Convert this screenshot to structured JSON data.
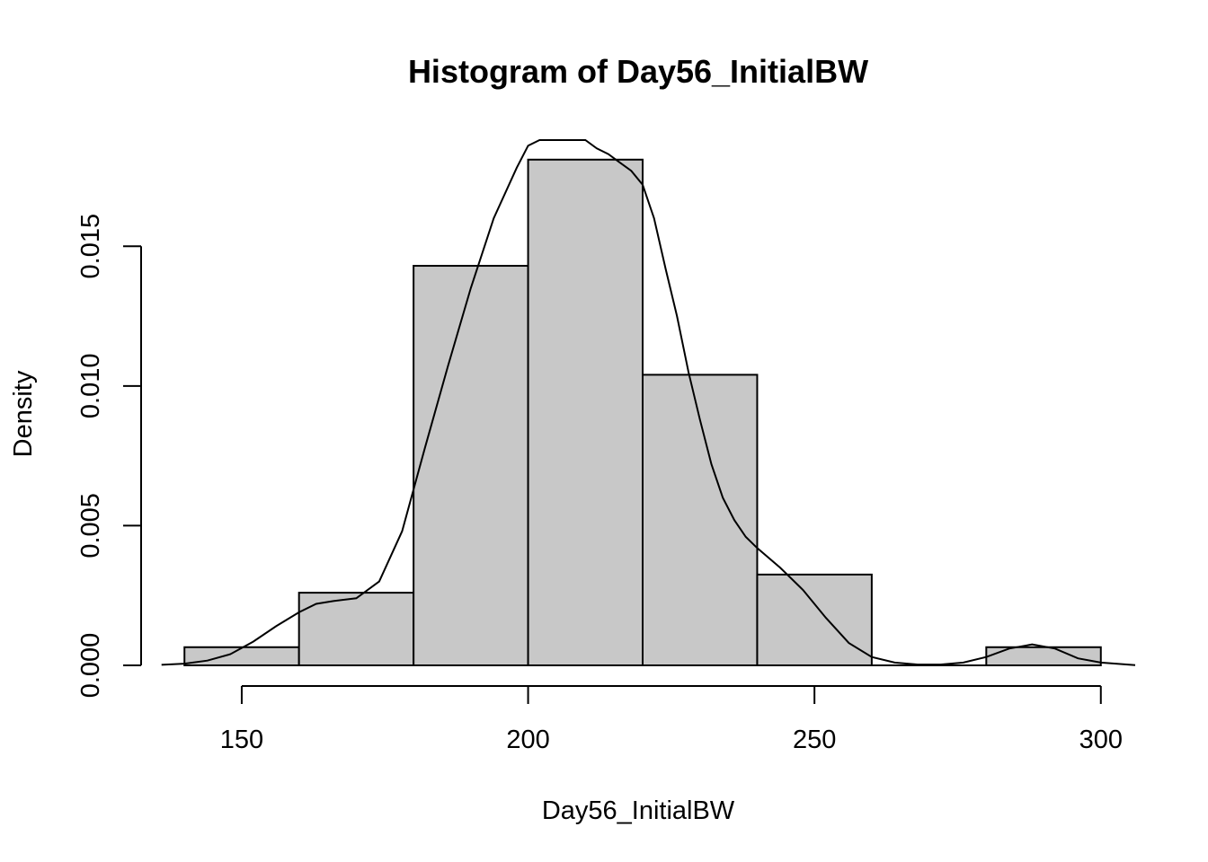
{
  "chart_data": {
    "type": "histogram",
    "title": "Histogram of Day56_InitialBW",
    "xlabel": "Day56_InitialBW",
    "ylabel": "Density",
    "xlim": [
      134,
      306
    ],
    "ylim": [
      0,
      0.0188
    ],
    "x_ticks": [
      150,
      200,
      250,
      300
    ],
    "x_tick_labels": [
      "150",
      "200",
      "250",
      "300"
    ],
    "y_ticks": [
      0,
      0.005,
      0.01,
      0.015
    ],
    "y_tick_labels": [
      "0.000",
      "0.005",
      "0.010",
      "0.015"
    ],
    "bin_edges": [
      140,
      160,
      180,
      200,
      220,
      240,
      260,
      280,
      300
    ],
    "values": [
      0.00065,
      0.0026,
      0.0143,
      0.0181,
      0.0104,
      0.00325,
      0,
      0.00065
    ],
    "bar_color": "#c8c8c8",
    "density_curve": {
      "x": [
        136,
        140,
        144,
        148,
        152,
        156,
        160,
        163,
        166,
        170,
        174,
        178,
        182,
        186,
        190,
        194,
        198,
        200,
        202,
        205,
        208,
        210,
        212,
        214,
        216,
        218,
        220,
        222,
        224,
        226,
        228,
        230,
        232,
        234,
        236,
        238,
        240,
        244,
        248,
        252,
        256,
        260,
        264,
        268,
        272,
        276,
        280,
        284,
        288,
        292,
        296,
        300,
        306
      ],
      "y": [
        2e-05,
        6e-05,
        0.00017,
        0.0004,
        0.00085,
        0.0014,
        0.0019,
        0.0022,
        0.0023,
        0.0024,
        0.003,
        0.0048,
        0.0078,
        0.0107,
        0.0135,
        0.016,
        0.0178,
        0.0186,
        0.019,
        0.0192,
        0.0191,
        0.0189,
        0.0185,
        0.0183,
        0.018,
        0.0177,
        0.0172,
        0.016,
        0.0142,
        0.0125,
        0.0105,
        0.0088,
        0.0072,
        0.006,
        0.0052,
        0.0046,
        0.0042,
        0.0035,
        0.0027,
        0.0017,
        0.0008,
        0.0003,
        0.0001,
        3e-05,
        3e-05,
        0.0001,
        0.0003,
        0.0006,
        0.00075,
        0.0006,
        0.00025,
        0.0001,
        1e-05
      ]
    },
    "grid": false,
    "legend": "none"
  }
}
